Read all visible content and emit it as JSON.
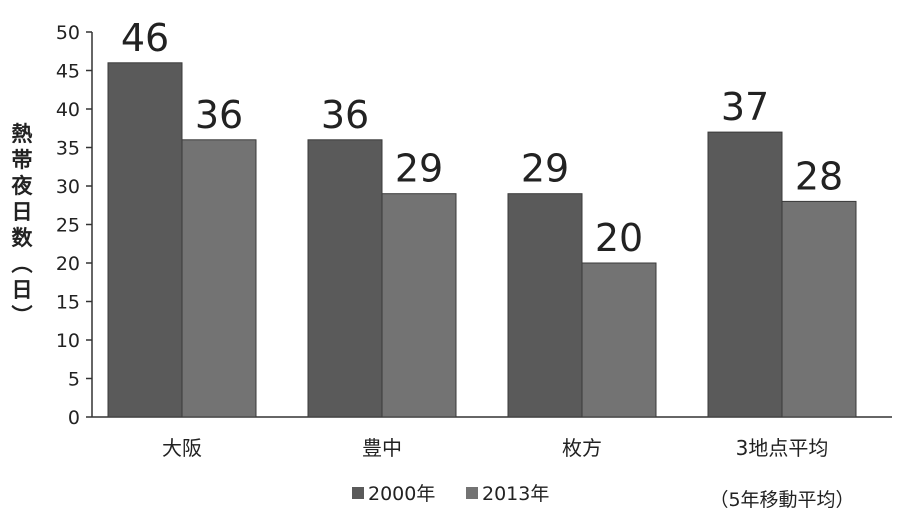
{
  "chart_data": {
    "type": "bar",
    "categories": [
      "大阪",
      "豊中",
      "枚方",
      "3地点平均"
    ],
    "category_note": "（5年移動平均）",
    "series": [
      {
        "name": "2000年",
        "values": [
          46,
          36,
          29,
          37
        ],
        "color": "#5a5a5a"
      },
      {
        "name": "2013年",
        "values": [
          36,
          29,
          20,
          28
        ],
        "color": "#737373"
      }
    ],
    "ylabel": "熱帯夜日数（日）",
    "ylim": [
      0,
      50
    ],
    "yticks": [
      "0",
      "5",
      "10",
      "15",
      "20",
      "25",
      "30",
      "35",
      "40",
      "45",
      "50"
    ],
    "grid": false,
    "legend_position": "bottom"
  }
}
